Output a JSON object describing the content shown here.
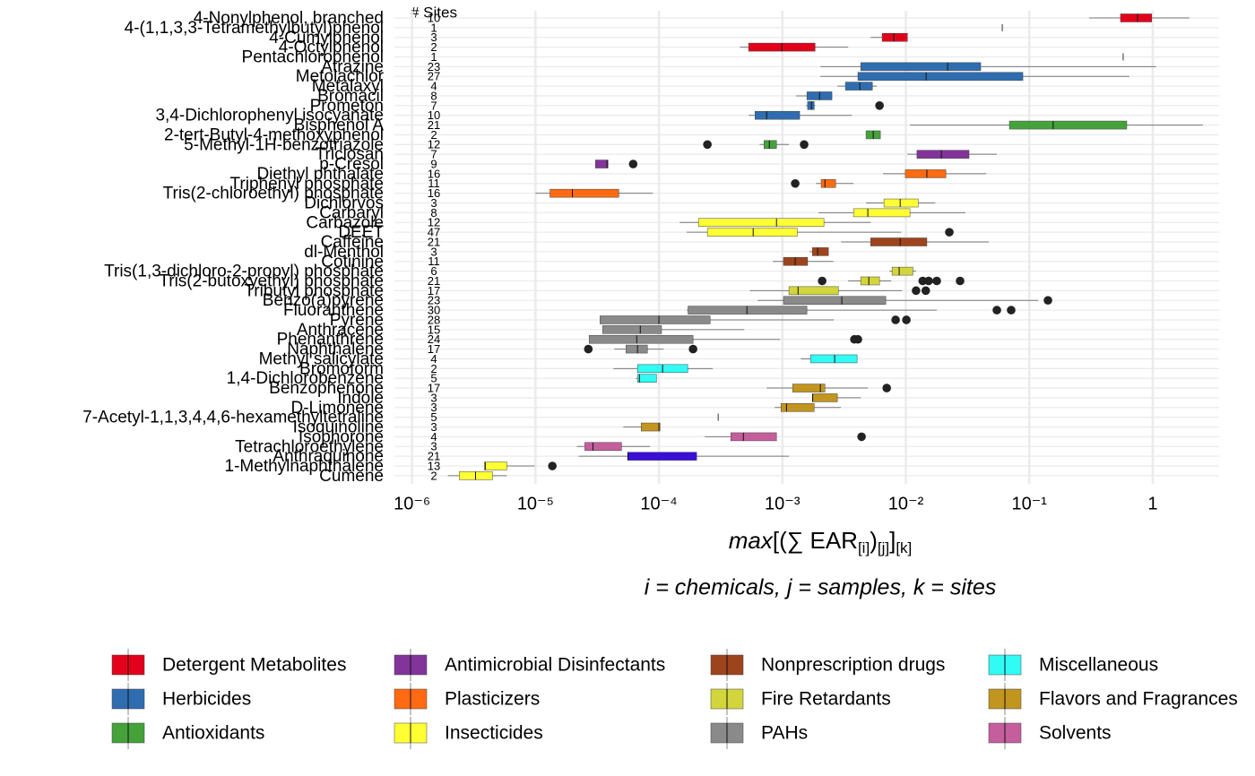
{
  "chart_data": {
    "type": "boxplot",
    "sites_header": "# Sites",
    "log_x": true,
    "grid": true,
    "xlim": [
      7.2e-07,
      3.45
    ],
    "xticks": [
      {
        "value": 1e-06,
        "label": "10⁻⁶"
      },
      {
        "value": 1e-05,
        "label": "10⁻⁵"
      },
      {
        "value": 0.0001,
        "label": "10⁻⁴"
      },
      {
        "value": 0.001,
        "label": "10⁻³"
      },
      {
        "value": 0.01,
        "label": "10⁻²"
      },
      {
        "value": 0.1,
        "label": "10⁻¹"
      },
      1
    ],
    "xlabel": [
      {
        "text": "max",
        "italic": true
      },
      {
        "text": "[(∑ EAR"
      },
      {
        "text": "[i]",
        "sub": true
      },
      {
        "text": ")"
      },
      {
        "text": "[j]",
        "sub": true
      },
      {
        "text": "]"
      },
      {
        "text": "[k]",
        "sub": true
      }
    ],
    "caption": "i = chemicals, j = samples, k = sites",
    "legend": [
      {
        "name": "Detergent Metabolites",
        "color": "#e3001b"
      },
      {
        "name": "Herbicides",
        "color": "#2f6db0"
      },
      {
        "name": "Antioxidants",
        "color": "#45a23b"
      },
      {
        "name": "Antimicrobial Disinfectants",
        "color": "#82349a"
      },
      {
        "name": "Plasticizers",
        "color": "#ff6a12"
      },
      {
        "name": "Insecticides",
        "color": "#ffff33"
      },
      {
        "name": "Nonprescription drugs",
        "color": "#9e441c"
      },
      {
        "name": "Fire Retardants",
        "color": "#d2d63c"
      },
      {
        "name": "PAHs",
        "color": "#8a8a8a"
      },
      {
        "name": "Miscellaneous",
        "color": "#30fbf5"
      },
      {
        "name": "Flavors and Fragrances",
        "color": "#c2951e"
      },
      {
        "name": "Solvents",
        "color": "#c45e9c"
      }
    ],
    "rows": [
      {
        "label": "4-Nonylphenol, branched",
        "sites": 10,
        "color": "#e3001b",
        "whislo": 0.305,
        "q1": 0.548,
        "med": 0.753,
        "q3": 0.98,
        "whishi": 1.98
      },
      {
        "label": "4-(1,1,3,3-Tetramethylbutyl)phenol",
        "sites": 1,
        "med": 0.0604
      },
      {
        "label": "4-Cumylphenol",
        "sites": 3,
        "color": "#e3001b",
        "whislo": 0.00518,
        "q1": 0.00643,
        "med": 0.008,
        "q3": 0.0103,
        "whishi": 0.0103
      },
      {
        "label": "4-Octylphenol",
        "sites": 2,
        "color": "#e3001b",
        "whislo": 0.000452,
        "q1": 0.000533,
        "med": 0.00099,
        "q3": 0.00184,
        "whishi": 0.00341
      },
      {
        "label": "Pentachlorophenol",
        "sites": 1,
        "med": 0.576
      },
      {
        "label": "Atrazine",
        "sites": 23,
        "color": "#2f6db0",
        "whislo": 0.00203,
        "q1": 0.00431,
        "med": 0.0218,
        "q3": 0.0404,
        "whishi": 1.07
      },
      {
        "label": "Metolachlor",
        "sites": 27,
        "color": "#2f6db0",
        "whislo": 0.00203,
        "q1": 0.00409,
        "med": 0.0146,
        "q3": 0.0887,
        "whishi": 0.647
      },
      {
        "label": "Metalaxyl",
        "sites": 4,
        "color": "#2f6db0",
        "whislo": 0.00279,
        "q1": 0.00324,
        "med": 0.00424,
        "q3": 0.00536,
        "whishi": 0.00582
      },
      {
        "label": "Bromacil",
        "sites": 8,
        "color": "#2f6db0",
        "whislo": 0.00129,
        "q1": 0.00158,
        "med": 0.002,
        "q3": 0.00252,
        "whishi": 0.00252
      },
      {
        "label": "Prometon",
        "sites": 7,
        "color": "#2f6db0",
        "whislo": 0.00155,
        "q1": 0.0016,
        "med": 0.00172,
        "q3": 0.00181,
        "whishi": 0.00184,
        "fliers": [
          0.00612
        ]
      },
      {
        "label": "3,4-Dichlorophenyl isocyanate",
        "sites": 10,
        "color": "#2f6db0",
        "whislo": 0.000533,
        "q1": 0.0006,
        "med": 0.000745,
        "q3": 0.00138,
        "whishi": 0.00365
      },
      {
        "label": "Bisphenol A",
        "sites": 21,
        "color": "#45a23b",
        "whislo": 0.0108,
        "q1": 0.069,
        "med": 0.156,
        "q3": 0.616,
        "whishi": 2.55
      },
      {
        "label": "2-tert-Butyl-4-methoxyphenol",
        "sites": 2,
        "color": "#45a23b",
        "whislo": 0.00476,
        "q1": 0.00476,
        "med": 0.00544,
        "q3": 0.00622,
        "whishi": 0.00622
      },
      {
        "label": "5-Methyl-1H-benzotriazole",
        "sites": 12,
        "color": "#45a23b",
        "whislo": 0.000654,
        "q1": 0.00071,
        "med": 0.000784,
        "q3": 0.000896,
        "whishi": 0.00113,
        "fliers": [
          0.000247,
          0.0015
        ]
      },
      {
        "label": "Triclosan",
        "sites": 7,
        "color": "#82349a",
        "whislo": 0.0103,
        "q1": 0.0123,
        "med": 0.0194,
        "q3": 0.0325,
        "whishi": 0.0546
      },
      {
        "label": "p-Cresol",
        "sites": 9,
        "color": "#82349a",
        "whislo": 3.06e-05,
        "q1": 3.06e-05,
        "med": 3.8e-05,
        "q3": 3.87e-05,
        "whishi": 3.87e-05,
        "fliers": [
          6.18e-05
        ]
      },
      {
        "label": "Diethyl phthalate",
        "sites": 16,
        "color": "#ff6a12",
        "whislo": 0.00654,
        "q1": 0.0099,
        "med": 0.0148,
        "q3": 0.0211,
        "whishi": 0.0447
      },
      {
        "label": "Triphenyl phosphate",
        "sites": 11,
        "color": "#ff6a12",
        "whislo": 0.00187,
        "q1": 0.00206,
        "med": 0.00221,
        "q3": 0.0027,
        "whishi": 0.00377,
        "fliers": [
          0.00127
        ]
      },
      {
        "label": "Tris(2-chloroethyl) phosphate",
        "sites": 16,
        "color": "#ff6a12",
        "whislo": 1e-05,
        "q1": 1.31e-05,
        "med": 1.99e-05,
        "q3": 4.73e-05,
        "whishi": 8.93e-05
      },
      {
        "label": "Dichlorvos",
        "sites": 3,
        "color": "#ffff33",
        "whislo": 0.00476,
        "q1": 0.00665,
        "med": 0.009,
        "q3": 0.0126,
        "whishi": 0.0173
      },
      {
        "label": "Carbaryl",
        "sites": 8,
        "color": "#ffff33",
        "whislo": 0.00196,
        "q1": 0.00377,
        "med": 0.00492,
        "q3": 0.0108,
        "whishi": 0.0304
      },
      {
        "label": "Carbazole",
        "sites": 12,
        "color": "#ffff33",
        "whislo": 0.000147,
        "q1": 0.000209,
        "med": 0.000896,
        "q3": 0.00217,
        "whishi": 0.00518
      },
      {
        "label": "DEET",
        "sites": 47,
        "color": "#ffff33",
        "whislo": 0.000168,
        "q1": 0.000247,
        "med": 0.00058,
        "q3": 0.00132,
        "whishi": 0.00914,
        "fliers": [
          0.0225
        ]
      },
      {
        "label": "Caffeine",
        "sites": 21,
        "color": "#9e441c",
        "whislo": 0.00298,
        "q1": 0.00518,
        "med": 0.009,
        "q3": 0.0148,
        "whishi": 0.047
      },
      {
        "label": "dl-Menthol",
        "sites": 3,
        "color": "#9e441c",
        "whislo": 0.00166,
        "q1": 0.00175,
        "med": 0.00193,
        "q3": 0.00236,
        "whishi": 0.00236
      },
      {
        "label": "Cotinine",
        "sites": 11,
        "color": "#9e441c",
        "whislo": 0.000838,
        "q1": 0.00102,
        "med": 0.00127,
        "q3": 0.0016,
        "whishi": 0.00259
      },
      {
        "label": "Tris(1,3-dichloro-2-propyl) phosphate",
        "sites": 6,
        "color": "#d2d63c",
        "whislo": 0.00736,
        "q1": 0.00773,
        "med": 0.00883,
        "q3": 0.0114,
        "whishi": 0.0121
      },
      {
        "label": "Tris(2-butoxyethyl) phosphate",
        "sites": 21,
        "color": "#d2d63c",
        "whislo": 0.00341,
        "q1": 0.00431,
        "med": 0.00501,
        "q3": 0.00612,
        "whishi": 0.0076,
        "fliers": [
          0.0021,
          0.0137,
          0.0153,
          0.0178,
          0.0275
        ]
      },
      {
        "label": "Tributyl phosphate",
        "sites": 17,
        "color": "#d2d63c",
        "whislo": 0.000545,
        "q1": 0.00113,
        "med": 0.00134,
        "q3": 0.00284,
        "whishi": 0.0093,
        "fliers": [
          0.0121,
          0.0145
        ]
      },
      {
        "label": "Benzo(a)pyrene",
        "sites": 23,
        "color": "#8a8a8a",
        "whislo": 0.00063,
        "q1": 0.00102,
        "med": 0.00303,
        "q3": 0.00688,
        "whishi": 0.118,
        "fliers": [
          0.1416
        ]
      },
      {
        "label": "Fluoranthene",
        "sites": 30,
        "color": "#8a8a8a",
        "whislo": 0.000168,
        "q1": 0.000172,
        "med": 0.000516,
        "q3": 0.00158,
        "whishi": 0.0178,
        "fliers": [
          0.0546,
          0.0713
        ]
      },
      {
        "label": "Pyrene",
        "sites": 28,
        "color": "#8a8a8a",
        "whislo": 3.33e-05,
        "q1": 3.33e-05,
        "med": 0.0001,
        "q3": 0.00026,
        "whishi": 0.00261,
        "fliers": [
          0.00826,
          0.0101
        ]
      },
      {
        "label": "Anthracene",
        "sites": 15,
        "color": "#8a8a8a",
        "whislo": 3.5e-05,
        "q1": 3.5e-05,
        "med": 7.06e-05,
        "q3": 0.000105,
        "whishi": 0.000491
      },
      {
        "label": "Phenanthrene",
        "sites": 24,
        "color": "#8a8a8a",
        "whislo": 2.72e-05,
        "q1": 2.72e-05,
        "med": 6.61e-05,
        "q3": 0.000189,
        "whishi": 0.000958,
        "fliers": [
          0.00383,
          0.00409
        ]
      },
      {
        "label": "Naphthalene",
        "sites": 17,
        "color": "#8a8a8a",
        "whislo": 4.35e-05,
        "q1": 5.41e-05,
        "med": 6.71e-05,
        "q3": 8.07e-05,
        "whishi": 0.000109,
        "fliers": [
          2.68e-05,
          0.000189
        ]
      },
      {
        "label": "Methyl salicylate",
        "sites": 4,
        "color": "#30fbf5",
        "whislo": 0.00141,
        "q1": 0.00169,
        "med": 0.00265,
        "q3": 0.00403,
        "whishi": 0.00403
      },
      {
        "label": "Bromoform",
        "sites": 2,
        "color": "#30fbf5",
        "whislo": 4.28e-05,
        "q1": 6.71e-05,
        "med": 0.000107,
        "q3": 0.000171,
        "whishi": 0.000273
      },
      {
        "label": "1,4-Dichlorobenzene",
        "sites": 5,
        "color": "#30fbf5",
        "whislo": 6.5e-05,
        "q1": 6.71e-05,
        "med": 6.95e-05,
        "q3": 9.55e-05,
        "whishi": 9.55e-05
      },
      {
        "label": "Benzophenone",
        "sites": 17,
        "color": "#c2951e",
        "whislo": 0.000745,
        "q1": 0.00121,
        "med": 0.00203,
        "q3": 0.00221,
        "whishi": 0.00492,
        "fliers": [
          0.007
        ]
      },
      {
        "label": "Indole",
        "sites": 3,
        "color": "#c2951e",
        "whislo": 0.00175,
        "q1": 0.00175,
        "med": 0.00176,
        "q3": 0.00279,
        "whishi": 0.00431
      },
      {
        "label": "D-Limonene",
        "sites": 3,
        "color": "#c2951e",
        "whislo": 0.000867,
        "q1": 0.000974,
        "med": 0.00108,
        "q3": 0.00181,
        "whishi": 0.00298
      },
      {
        "label": "7-Acetyl-1,1,3,4,4,6-hexamethyltetraline",
        "sites": 5,
        "med": 0.000302
      },
      {
        "label": "Isoquinoline",
        "sites": 3,
        "color": "#c2951e",
        "whislo": 5.14e-05,
        "q1": 7.18e-05,
        "med": 0.0001,
        "q3": 0.000102,
        "whishi": 0.000102
      },
      {
        "label": "Isophorone",
        "sites": 4,
        "color": "#c45e9c",
        "whislo": 0.000235,
        "q1": 0.000382,
        "med": 0.000483,
        "q3": 0.000896,
        "whishi": 0.000896,
        "fliers": [
          0.00438
        ]
      },
      {
        "label": "Tetrachloroethylene",
        "sites": 3,
        "color": "#c45e9c",
        "whislo": 2.16e-05,
        "q1": 2.51e-05,
        "med": 2.92e-05,
        "q3": 4.98e-05,
        "whishi": 8.49e-05
      },
      {
        "label": "Anthraquinone",
        "sites": 21,
        "color": "#3a10d8",
        "whislo": 2.23e-05,
        "q1": 5.59e-05,
        "med": 5.6e-05,
        "q3": 0.000202,
        "whishi": 0.00113
      },
      {
        "label": "1-Methylnaphthalene",
        "sites": 13,
        "color": "#ffff33",
        "whislo": 3.86e-06,
        "q1": 3.86e-06,
        "med": 3.92e-06,
        "q3": 5.86e-06,
        "whishi": 9.84e-06,
        "fliers": [
          1.37e-05
        ]
      },
      {
        "label": "Cumene",
        "sites": 2,
        "color": "#ffff33",
        "whislo": 1.95e-06,
        "q1": 2.41e-06,
        "med": 3.27e-06,
        "q3": 4.49e-06,
        "whishi": 5.86e-06
      }
    ]
  }
}
